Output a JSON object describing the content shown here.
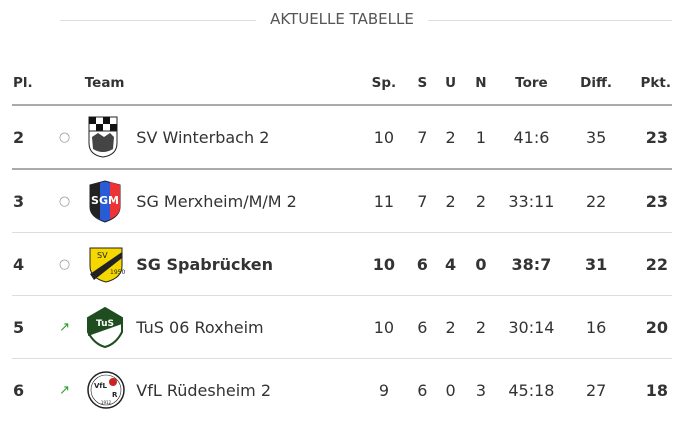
{
  "title": "AKTUELLE TABELLE",
  "headers": {
    "pl": "Pl.",
    "team": "Team",
    "sp": "Sp.",
    "s": "S",
    "u": "U",
    "n": "N",
    "tore": "Tore",
    "diff": "Diff.",
    "pkt": "Pkt."
  },
  "rows": [
    {
      "pl": "2",
      "trend": "○",
      "trend_icon": "neutral-circle-icon",
      "team": "SV Winterbach 2",
      "sp": "10",
      "s": "7",
      "u": "2",
      "n": "1",
      "tore": "41:6",
      "diff": "35",
      "pkt": "23"
    },
    {
      "pl": "3",
      "trend": "○",
      "trend_icon": "neutral-circle-icon",
      "team": "SG Merxheim/M/M 2",
      "sp": "11",
      "s": "7",
      "u": "2",
      "n": "2",
      "tore": "33:11",
      "diff": "22",
      "pkt": "23"
    },
    {
      "pl": "4",
      "trend": "○",
      "trend_icon": "neutral-circle-icon",
      "team": "SG Spabrücken",
      "sp": "10",
      "s": "6",
      "u": "4",
      "n": "0",
      "tore": "38:7",
      "diff": "31",
      "pkt": "22",
      "highlight": true
    },
    {
      "pl": "5",
      "trend": "↗",
      "trend_icon": "arrow-up-right-icon",
      "team": "TuS 06 Roxheim",
      "sp": "10",
      "s": "6",
      "u": "2",
      "n": "2",
      "tore": "30:14",
      "diff": "16",
      "pkt": "20"
    },
    {
      "pl": "6",
      "trend": "↗",
      "trend_icon": "arrow-up-right-icon",
      "team": "VfL Rüdesheim 2",
      "sp": "9",
      "s": "6",
      "u": "0",
      "n": "3",
      "tore": "45:18",
      "diff": "27",
      "pkt": "18"
    }
  ],
  "colors": {
    "trend_up": "#2a9d2a",
    "neutral": "#999999"
  }
}
